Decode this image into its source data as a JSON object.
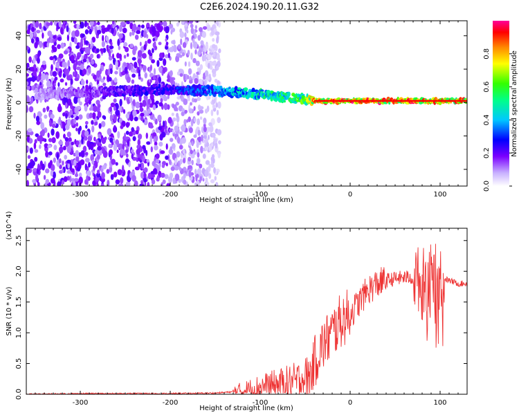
{
  "title": "C2E6.2024.190.20.11.G32",
  "chart_data": [
    {
      "type": "heatmap",
      "xlabel": "Height of straight line (km)",
      "ylabel": "Frequency (Hz)",
      "xlim": [
        -360,
        130
      ],
      "ylim": [
        -50,
        49
      ],
      "x_ticks": [
        -300,
        -200,
        -100,
        0,
        100
      ],
      "x_tick_labels": [
        "-300",
        "-200",
        "-100",
        "0",
        "100"
      ],
      "y_ticks": [
        -40,
        -20,
        0,
        20,
        40
      ],
      "y_tick_labels": [
        "-40",
        "-20",
        "0",
        "20",
        "40"
      ],
      "colorbar": {
        "label": "Normalized spectral amplitude",
        "range": [
          0,
          1
        ],
        "ticks": [
          0.0,
          0.2,
          0.4,
          0.6,
          0.8
        ],
        "tick_labels": [
          "0.0",
          "0.2",
          "0.4",
          "0.6",
          "0.8"
        ]
      },
      "ridge": {
        "x": [
          -350,
          -250,
          -200,
          -150,
          -100,
          -70,
          -50,
          -40,
          -30,
          0,
          50,
          100,
          130
        ],
        "frequency": [
          5,
          7,
          8,
          7,
          5,
          3,
          2,
          1,
          1,
          1,
          1,
          1,
          1
        ],
        "amplitude": [
          0.1,
          0.25,
          0.3,
          0.4,
          0.55,
          0.6,
          0.7,
          0.9,
          0.95,
          0.95,
          0.95,
          0.9,
          0.95
        ]
      },
      "noise_region": {
        "x_from": -360,
        "x_to": -145
      },
      "grid": false
    },
    {
      "type": "line",
      "xlabel": "Height of straight line (km)",
      "ylabel": "SNR (10 * v/v)",
      "y_multiplier": "(x10^4)",
      "xlim": [
        -360,
        130
      ],
      "ylim": [
        0,
        2.7
      ],
      "x_ticks": [
        -300,
        -200,
        -100,
        0,
        100
      ],
      "x_tick_labels": [
        "-300",
        "-200",
        "-100",
        "0",
        "100"
      ],
      "y_ticks": [
        0.0,
        0.5,
        1.0,
        1.5,
        2.0,
        2.5
      ],
      "y_tick_labels": [
        "0.0",
        "0.5",
        "1.0",
        "1.5",
        "2.0",
        "2.5"
      ],
      "series": [
        {
          "color": "#ee3333",
          "x": [
            -360,
            -300,
            -200,
            -150,
            -120,
            -100,
            -80,
            -60,
            -45,
            -35,
            -20,
            -10,
            0,
            10,
            20,
            30,
            40,
            50,
            60,
            70,
            80,
            90,
            100,
            110,
            120,
            130
          ],
          "y": [
            0.0,
            0.01,
            0.01,
            0.02,
            0.05,
            0.12,
            0.15,
            0.2,
            0.3,
            0.7,
            1.0,
            1.2,
            1.3,
            1.5,
            1.7,
            1.8,
            1.85,
            1.88,
            1.9,
            1.9,
            1.85,
            1.9,
            1.9,
            1.85,
            1.8,
            1.8
          ]
        }
      ],
      "grid": false
    }
  ]
}
